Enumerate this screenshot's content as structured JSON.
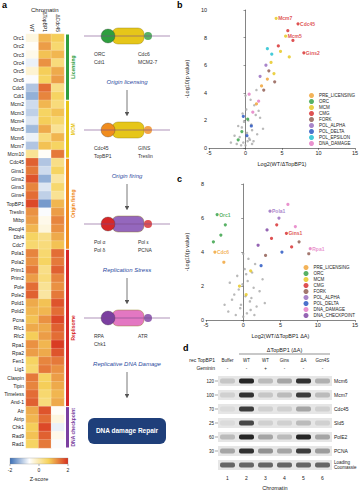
{
  "panel_labels": [
    "a",
    "b",
    "c",
    "d"
  ],
  "chart_data": [
    {
      "type": "heatmap",
      "title": "Chromatin",
      "columns": [
        "WT",
        "ΔTopBP1",
        "ΔCdc45"
      ],
      "rows": [
        "Orc1",
        "Orc2",
        "Orc3",
        "Orc4",
        "Orc5",
        "Orc6",
        "Cdc6",
        "Cdt1",
        "Mcm2",
        "Mcm3",
        "Mcm4",
        "Mcm5",
        "Mcm6",
        "Mcm7",
        "Mcm10",
        "Cdc45",
        "Gins1",
        "Gins2",
        "Gins3",
        "Gins4",
        "TopBP1",
        "Treslin",
        "Mtbp",
        "Recql4",
        "Dbf4",
        "Cdc7",
        "Pola1",
        "Pola2",
        "Prim1",
        "Prim2",
        "Pole",
        "Pole2",
        "Pold1",
        "Pold2",
        "Pcna",
        "Rfc1",
        "Rfc2",
        "Rpa1",
        "Rpa2",
        "Fen1",
        "Lig1",
        "Claspin",
        "Tipin",
        "Timeless",
        "And-1",
        "Atr",
        "Atrip",
        "Chk1",
        "Rad9",
        "Rad1"
      ],
      "cells": [
        [
          -0.4,
          0.9,
          0.7
        ],
        [
          -0.6,
          1.1,
          0.5
        ],
        [
          -0.5,
          0.8,
          0.9
        ],
        [
          -0.8,
          1.2,
          0.4
        ],
        [
          -0.3,
          0.7,
          1.0
        ],
        [
          -0.7,
          0.6,
          1.1
        ],
        [
          -1.2,
          1.5,
          0.3
        ],
        [
          -1.4,
          1.3,
          0.6
        ],
        [
          -1.0,
          0.9,
          0.4
        ],
        [
          -1.1,
          0.6,
          0.8
        ],
        [
          -0.9,
          0.7,
          0.5
        ],
        [
          -1.3,
          1.0,
          0.2
        ],
        [
          -0.8,
          0.4,
          0.9
        ],
        [
          -1.2,
          0.8,
          0.6
        ],
        [
          0.2,
          -0.6,
          1.4
        ],
        [
          1.6,
          -1.2,
          0.3
        ],
        [
          1.4,
          -1.0,
          0.6
        ],
        [
          1.7,
          -1.4,
          0.1
        ],
        [
          1.3,
          -0.9,
          0.5
        ],
        [
          1.5,
          -1.1,
          0.2
        ],
        [
          1.8,
          -1.6,
          0.9
        ],
        [
          1.2,
          -0.7,
          1.1
        ],
        [
          1.1,
          -0.5,
          1.3
        ],
        [
          0.9,
          -0.4,
          1.2
        ],
        [
          0.6,
          0.3,
          1.0
        ],
        [
          0.5,
          0.4,
          0.8
        ],
        [
          1.3,
          0.5,
          1.5
        ],
        [
          1.2,
          0.6,
          1.4
        ],
        [
          1.4,
          0.3,
          1.6
        ],
        [
          1.1,
          0.4,
          1.3
        ],
        [
          1.5,
          0.2,
          1.2
        ],
        [
          1.6,
          0.1,
          1.4
        ],
        [
          1.0,
          0.8,
          1.7
        ],
        [
          0.9,
          0.9,
          1.5
        ],
        [
          0.8,
          1.2,
          1.8
        ],
        [
          1.0,
          1.0,
          1.6
        ],
        [
          0.7,
          1.1,
          1.5
        ],
        [
          1.2,
          0.9,
          1.9
        ],
        [
          1.1,
          1.0,
          1.7
        ],
        [
          0.6,
          1.3,
          1.4
        ],
        [
          0.5,
          1.4,
          1.2
        ],
        [
          1.4,
          0.6,
          1.1
        ],
        [
          1.3,
          0.7,
          1.0
        ],
        [
          1.5,
          0.5,
          0.9
        ],
        [
          1.6,
          0.4,
          1.0
        ],
        [
          1.0,
          1.7,
          -0.6
        ],
        [
          0.9,
          1.5,
          -0.4
        ],
        [
          0.7,
          1.8,
          -0.8
        ],
        [
          0.8,
          1.6,
          -0.5
        ],
        [
          0.6,
          1.4,
          -0.7
        ]
      ],
      "groups": [
        {
          "name": "Licensing",
          "color": "#2e9e3e",
          "size": 8
        },
        {
          "name": "MCM",
          "color": "#e6c619",
          "size": 7
        },
        {
          "name": "Origin firing",
          "color": "#f08c1e",
          "size": 11
        },
        {
          "name": "Replisome",
          "color": "#d62728",
          "size": 19
        },
        {
          "name": "DNA checkpoint",
          "color": "#7b3fa0",
          "size": 5
        }
      ],
      "colorbar": {
        "range": [
          -2,
          2
        ],
        "ticks": [
          -2,
          0,
          2
        ],
        "label": "Z-score",
        "colors": [
          "#3b6fb6",
          "#ffffff",
          "#f6d25a",
          "#d7301f"
        ]
      }
    },
    {
      "type": "scatter",
      "xlabel": "Log2(WT/ΔTopBP1)",
      "ylabel": "-Log10(p value)",
      "xlim": [
        -5,
        15
      ],
      "xticks": [
        -5,
        0,
        5,
        10,
        15
      ],
      "ylim": [
        0,
        10
      ],
      "yticks": [
        0,
        2,
        4,
        6,
        8,
        10
      ],
      "legend": "bottom-right",
      "background": {
        "color": "#a8a8a8",
        "x": [
          -1.2,
          -0.8,
          -0.5,
          -0.3,
          0,
          0.2,
          0.4,
          0.6,
          0.9,
          1.1,
          1.4,
          -1.5,
          -0.6,
          0.1,
          0.5,
          0.8,
          1.2,
          1.6,
          2,
          -0.2,
          0.3,
          0.7,
          -1,
          1.8,
          2.4,
          -2,
          0.0,
          0.9,
          1.5,
          -0.4
        ],
        "y": [
          0.3,
          0.8,
          1.5,
          0.4,
          0.2,
          1.1,
          2.0,
          0.6,
          1.3,
          0.5,
          2.4,
          0.9,
          0.2,
          2.8,
          0.7,
          1.7,
          3.1,
          1.0,
          2.2,
          1.9,
          0.5,
          3.5,
          1.6,
          2.7,
          1.4,
          0.4,
          3.8,
          0.3,
          4.2,
          2.5
        ]
      },
      "series": [
        {
          "name": "PRE_LICENSING",
          "color": "#f0a030",
          "x": [
            1.5,
            2.2,
            3.0
          ],
          "y": [
            3.2,
            4.5,
            5.0
          ]
        },
        {
          "name": "ORC",
          "color": "#2e9e3e",
          "x": [
            -0.5,
            0.3,
            -1.0
          ],
          "y": [
            1.2,
            2.1,
            0.6
          ]
        },
        {
          "name": "MCM",
          "color": "#e6c619",
          "x": [
            3.5,
            4.2,
            4.8,
            5.5,
            6.0,
            3.9
          ],
          "y": [
            6.2,
            9.4,
            7.0,
            8.1,
            6.6,
            5.4
          ]
        },
        {
          "name": "CMG",
          "color": "#d62728",
          "x": [
            5.8,
            6.5,
            7.2,
            8.0,
            4.5
          ],
          "y": [
            8.5,
            7.8,
            9.0,
            6.9,
            7.4
          ]
        },
        {
          "name": "FORK",
          "color": "#8c564b",
          "x": [
            2.5,
            3.2,
            4.0
          ],
          "y": [
            4.2,
            5.6,
            4.8
          ]
        },
        {
          "name": "POL_ALPHA",
          "color": "#9467bd",
          "x": [
            2.0,
            2.8
          ],
          "y": [
            5.2,
            6.0
          ]
        },
        {
          "name": "POL_DELTA",
          "color": "#1f4fbf",
          "x": [
            0.2,
            0.8,
            -0.3
          ],
          "y": [
            0.9,
            1.6,
            2.3
          ]
        },
        {
          "name": "POL_EPSILON",
          "color": "#17becf",
          "x": [
            3.0,
            3.6
          ],
          "y": [
            7.2,
            6.8
          ]
        },
        {
          "name": "DNA_DAMAGE",
          "color": "#e377c2",
          "x": [
            1.0,
            1.8,
            0.5
          ],
          "y": [
            2.6,
            3.4,
            3.9
          ]
        }
      ],
      "annotations": [
        {
          "text": "Mcm7",
          "x": 4.2,
          "y": 9.4,
          "color": "#d62728"
        },
        {
          "text": "Cdc45",
          "x": 7.2,
          "y": 9.0,
          "color": "#d62728"
        },
        {
          "text": "Mcm5",
          "x": 5.5,
          "y": 8.1,
          "color": "#d62728"
        },
        {
          "text": "Gins2",
          "x": 8.0,
          "y": 6.9,
          "color": "#d62728"
        }
      ]
    },
    {
      "type": "scatter",
      "xlabel": "Log2(WT/ΔTopBP1 ΔA)",
      "ylabel": "-Log10(p value)",
      "xlim": [
        -5,
        15
      ],
      "xticks": [
        -5,
        0,
        5,
        10,
        15
      ],
      "ylim": [
        0,
        8
      ],
      "yticks": [
        0,
        2,
        4,
        6,
        8
      ],
      "legend": "bottom-right",
      "background": {
        "color": "#a8a8a8",
        "x": [
          -2,
          -1.5,
          -1,
          -0.6,
          -0.3,
          0,
          0.3,
          0.6,
          1,
          1.4,
          1.8,
          -0.8,
          0.2,
          0.9,
          1.2,
          -1.2,
          2.2,
          0.5,
          -0.1,
          1.6,
          -2.5,
          0.7,
          2.6,
          -0.4,
          1.1,
          0.0,
          -1.8,
          1.5,
          2.9,
          0.4
        ],
        "y": [
          0.5,
          1.2,
          0.3,
          1.8,
          0.9,
          0.2,
          1.4,
          2.3,
          0.6,
          1.9,
          0.8,
          2.6,
          3.0,
          1.1,
          2.8,
          1.5,
          1.7,
          0.4,
          2.1,
          3.3,
          0.9,
          3.6,
          2.4,
          0.7,
          1.3,
          3.9,
          2.2,
          0.3,
          1.0,
          2.7
        ]
      },
      "series": [
        {
          "name": "PRE_LICENSING",
          "color": "#f0a030",
          "x": [
            -3.8,
            -2.6
          ],
          "y": [
            4.0,
            3.4
          ]
        },
        {
          "name": "ORC",
          "color": "#2e9e3e",
          "x": [
            -3.5,
            -3.0,
            -2.4,
            -4.0
          ],
          "y": [
            6.2,
            5.0,
            5.6,
            4.6
          ]
        },
        {
          "name": "MCM",
          "color": "#e6c619",
          "x": [
            -0.5,
            0.4,
            1.0
          ],
          "y": [
            2.0,
            1.5,
            2.9
          ]
        },
        {
          "name": "CMG",
          "color": "#d62728",
          "x": [
            4.5,
            5.8,
            6.5,
            3.8
          ],
          "y": [
            5.6,
            5.1,
            4.3,
            4.8
          ]
        },
        {
          "name": "FORK",
          "color": "#8c564b",
          "x": [
            3.0,
            7.5,
            8.8
          ],
          "y": [
            3.8,
            4.6,
            3.9
          ]
        },
        {
          "name": "POL_ALPHA",
          "color": "#9467bd",
          "x": [
            3.6,
            4.8
          ],
          "y": [
            6.4,
            6.0
          ]
        },
        {
          "name": "POL_DELTA",
          "color": "#1f4fbf",
          "x": [
            2.4,
            5.2
          ],
          "y": [
            3.2,
            4.0
          ]
        },
        {
          "name": "DNA_DAMAGE",
          "color": "#e377c2",
          "x": [
            6.0,
            9.0,
            7.0
          ],
          "y": [
            6.8,
            4.2,
            5.5
          ]
        },
        {
          "name": "DNA_CHECKPOINT",
          "color": "#7b3fa0",
          "x": [
            2.0,
            3.2
          ],
          "y": [
            4.4,
            5.3
          ]
        }
      ],
      "annotations": [
        {
          "text": "Orc1",
          "x": -3.5,
          "y": 6.2,
          "color": "#2e9e3e"
        },
        {
          "text": "Cdc6",
          "x": -3.8,
          "y": 4.0,
          "color": "#f0a030"
        },
        {
          "text": "Pola1",
          "x": 3.6,
          "y": 6.4,
          "color": "#9467bd"
        },
        {
          "text": "Gins1",
          "x": 5.8,
          "y": 5.1,
          "color": "#d62728"
        },
        {
          "text": "Rpa1",
          "x": 9.0,
          "y": 4.2,
          "color": "#e377c2"
        }
      ]
    }
  ],
  "diagram": {
    "steps": [
      {
        "title": "Origin licensing",
        "labels": [
          "ORC",
          "Cdc6",
          "Cdt1",
          "MCM2-7"
        ]
      },
      {
        "title": "Origin firing",
        "labels": [
          "Cdc45",
          "GINS",
          "TopBP1",
          "Treslin"
        ]
      },
      {
        "title": "Replication Stress",
        "labels": [
          "Pol α",
          "Pol ε",
          "Pol δ",
          "PCNA"
        ]
      },
      {
        "title": "Replicative DNA Damage",
        "labels": [
          "RPA",
          "ATR",
          "Chk1"
        ]
      },
      {
        "title": "DNA damage Repair"
      }
    ]
  },
  "blot": {
    "header": "ΔTopBP1 (ΔA)",
    "lane_rows": [
      {
        "label": "rec TopBP1",
        "values": [
          "Buffer",
          "WT",
          "WT",
          "Gins",
          "ΔA",
          "Gcn4S"
        ]
      },
      {
        "label": "Geminin",
        "values": [
          "-",
          "-",
          "+",
          "-",
          "-",
          "-"
        ]
      }
    ],
    "rows": [
      {
        "name": "Mcm6",
        "marker": 120,
        "intensity": [
          0.15,
          0.9,
          0.2,
          0.3,
          0.85,
          0.25
        ]
      },
      {
        "name": "Mcm7",
        "marker": 100,
        "intensity": [
          0.1,
          0.85,
          0.15,
          0.2,
          0.8,
          0.2
        ]
      },
      {
        "name": "Cdc45",
        "marker": 70,
        "intensity": [
          0.05,
          0.8,
          0.1,
          0.1,
          0.3,
          0.1
        ]
      },
      {
        "name": "Sld5",
        "marker": 25,
        "intensity": [
          0.05,
          0.75,
          0.1,
          0.1,
          0.2,
          0.1
        ]
      },
      {
        "name": "PolE2",
        "marker": 60,
        "intensity": [
          0.2,
          0.9,
          0.3,
          0.2,
          0.9,
          0.3
        ]
      },
      {
        "name": "PCNA",
        "marker": 30,
        "intensity": [
          0.3,
          0.85,
          0.4,
          0.3,
          0.8,
          0.35
        ]
      },
      {
        "name": "Loading Coomassie",
        "marker": null,
        "intensity": [
          0.6,
          0.6,
          0.6,
          0.6,
          0.6,
          0.6
        ]
      }
    ],
    "lane_numbers": [
      1,
      2,
      3,
      4,
      5,
      6
    ],
    "footer": "Chromatin"
  }
}
